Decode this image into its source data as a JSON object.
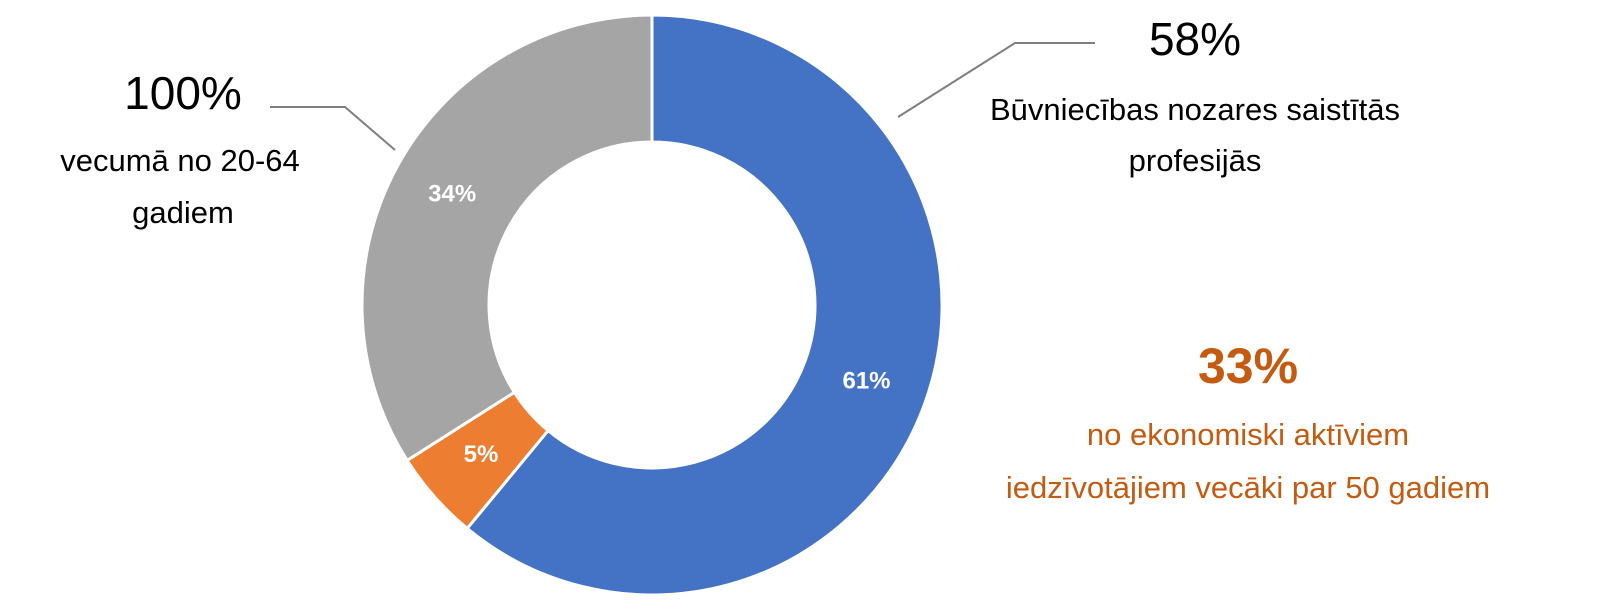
{
  "chart_data": {
    "type": "pie",
    "values": [
      61,
      5,
      34
    ],
    "value_labels": [
      "61%",
      "5%",
      "34%"
    ],
    "colors": [
      "#4472c4",
      "#ed7d31",
      "#a5a5a5"
    ],
    "annotations": [
      {
        "headline": "100%",
        "lines": [
          "vecumā no 20-64",
          "gadiem"
        ]
      },
      {
        "headline": "58%",
        "lines": [
          "Būvniecības nozares saistītās",
          "profesijās"
        ]
      },
      {
        "headline": "33%",
        "lines": [
          "no ekonomiski aktīviem",
          "iedzīvotājiem vecāki par 50 gadiem"
        ]
      }
    ]
  }
}
